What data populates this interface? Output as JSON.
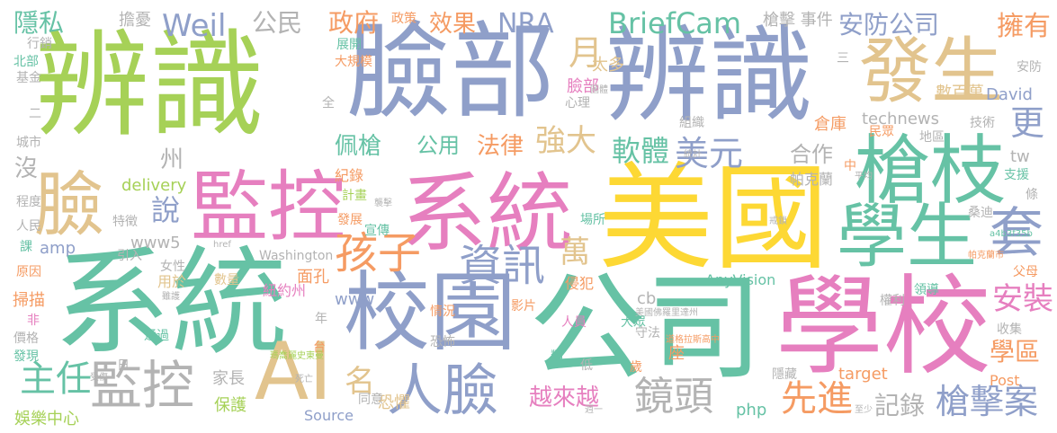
{
  "palette": {
    "green": "#a6d157",
    "blue": "#8f9fc9",
    "tan": "#e2c48e",
    "pink": "#e67fbf",
    "teal": "#66c2a5",
    "orange": "#f59b63",
    "gray": "#b3b3b3",
    "yellow": "#fdd834"
  },
  "words": [
    {
      "text": "辨識",
      "color": "green"
    },
    {
      "text": "臉部",
      "color": "blue"
    },
    {
      "text": "辨識",
      "color": "blue"
    },
    {
      "text": "發生",
      "color": "tan"
    },
    {
      "text": "系統",
      "color": "teal"
    },
    {
      "text": "公司",
      "color": "teal"
    },
    {
      "text": "美國",
      "color": "yellow"
    },
    {
      "text": "學校",
      "color": "pink"
    },
    {
      "text": "系統",
      "color": "pink"
    },
    {
      "text": "監控",
      "color": "pink"
    },
    {
      "text": "校園",
      "color": "blue"
    },
    {
      "text": "槍枝",
      "color": "teal"
    },
    {
      "text": "學生",
      "color": "teal"
    },
    {
      "text": "臉",
      "color": "tan"
    },
    {
      "text": "AI",
      "color": "tan"
    },
    {
      "text": "人臉",
      "color": "blue"
    },
    {
      "text": "監控",
      "color": "gray"
    },
    {
      "text": "孩子",
      "color": "orange"
    },
    {
      "text": "資訊",
      "color": "blue"
    },
    {
      "text": "套",
      "color": "blue"
    },
    {
      "text": "美元",
      "color": "blue"
    },
    {
      "text": "軟體",
      "color": "teal"
    },
    {
      "text": "強大",
      "color": "tan"
    },
    {
      "text": "鏡頭",
      "color": "gray"
    },
    {
      "text": "隱私",
      "color": "teal"
    },
    {
      "text": "Weil",
      "color": "blue"
    },
    {
      "text": "公民",
      "color": "gray"
    },
    {
      "text": "政府",
      "color": "orange"
    },
    {
      "text": "效果",
      "color": "orange"
    },
    {
      "text": "NRA",
      "color": "blue"
    },
    {
      "text": "BriefCam",
      "color": "teal"
    },
    {
      "text": "安防公司",
      "color": "blue"
    },
    {
      "text": "擁有",
      "color": "orange"
    },
    {
      "text": "更",
      "color": "blue"
    },
    {
      "text": "佩槍",
      "color": "teal"
    },
    {
      "text": "公用",
      "color": "teal"
    },
    {
      "text": "法律",
      "color": "orange"
    },
    {
      "text": "合作",
      "color": "gray"
    },
    {
      "text": "主任",
      "color": "teal"
    },
    {
      "text": "名",
      "color": "tan"
    },
    {
      "text": "萬",
      "color": "tan"
    },
    {
      "text": "先進",
      "color": "orange"
    },
    {
      "text": "記錄",
      "color": "gray"
    },
    {
      "text": "槍擊案",
      "color": "blue"
    },
    {
      "text": "越來越",
      "color": "pink"
    },
    {
      "text": "安裝",
      "color": "pink"
    },
    {
      "text": "學區",
      "color": "orange"
    },
    {
      "text": "月",
      "color": "tan"
    },
    {
      "text": "擔憂",
      "color": "gray"
    },
    {
      "text": "說",
      "color": "blue"
    },
    {
      "text": "沒",
      "color": "gray"
    },
    {
      "text": "州",
      "color": "gray"
    },
    {
      "text": "槍擊 事件",
      "color": "gray"
    },
    {
      "text": "delivery",
      "color": "green"
    },
    {
      "text": "amp",
      "color": "blue"
    },
    {
      "text": "www5",
      "color": "gray"
    },
    {
      "text": "Washington",
      "color": "gray"
    },
    {
      "text": "www",
      "color": "blue"
    },
    {
      "text": "AnyVision",
      "color": "teal"
    },
    {
      "text": "technews",
      "color": "gray"
    },
    {
      "text": "tw",
      "color": "gray"
    },
    {
      "text": "David",
      "color": "blue"
    },
    {
      "text": "Source",
      "color": "blue"
    },
    {
      "text": "target",
      "color": "orange"
    },
    {
      "text": "Post",
      "color": "orange"
    },
    {
      "text": "php",
      "color": "teal"
    },
    {
      "text": "cb",
      "color": "gray"
    },
    {
      "text": "紐約州",
      "color": "pink"
    },
    {
      "text": "家長",
      "color": "gray"
    },
    {
      "text": "保護",
      "color": "green"
    },
    {
      "text": "娛樂中心",
      "color": "green"
    },
    {
      "text": "掃描",
      "color": "orange"
    },
    {
      "text": "數百萬",
      "color": "tan"
    },
    {
      "text": "倉庫",
      "color": "orange"
    },
    {
      "text": "臉部",
      "color": "pink"
    },
    {
      "text": "太多",
      "color": "tan"
    },
    {
      "text": "帕克蘭",
      "color": "gray"
    },
    {
      "text": "技術",
      "color": "gray"
    },
    {
      "text": "地區",
      "color": "gray"
    },
    {
      "text": "民眾",
      "color": "orange"
    },
    {
      "text": "支援",
      "color": "teal"
    },
    {
      "text": "紀錄",
      "color": "orange"
    },
    {
      "text": "計畫",
      "color": "green"
    },
    {
      "text": "發展",
      "color": "orange"
    },
    {
      "text": "宣傳",
      "color": "teal"
    },
    {
      "text": "場所",
      "color": "teal"
    },
    {
      "text": "桑迪",
      "color": "gray"
    },
    {
      "text": "組織",
      "color": "gray"
    },
    {
      "text": "侵犯",
      "color": "orange"
    },
    {
      "text": "人員",
      "color": "pink"
    },
    {
      "text": "大眾",
      "color": "teal"
    },
    {
      "text": "影片",
      "color": "orange"
    },
    {
      "text": "情況",
      "color": "orange"
    },
    {
      "text": "恐怖",
      "color": "gray"
    },
    {
      "text": "恐懼",
      "color": "tan"
    },
    {
      "text": "同意",
      "color": "gray"
    },
    {
      "text": "數量",
      "color": "tan"
    },
    {
      "text": "女性",
      "color": "gray"
    },
    {
      "text": "用於",
      "color": "tan"
    },
    {
      "text": "面孔",
      "color": "orange"
    },
    {
      "text": "特徵",
      "color": "gray"
    },
    {
      "text": "引入",
      "color": "gray"
    },
    {
      "text": "通過",
      "color": "teal"
    },
    {
      "text": "價格",
      "color": "gray"
    },
    {
      "text": "發現",
      "color": "teal"
    },
    {
      "text": "收集",
      "color": "gray"
    },
    {
      "text": "領導",
      "color": "teal"
    },
    {
      "text": "權利",
      "color": "gray"
    },
    {
      "text": "守法",
      "color": "gray"
    },
    {
      "text": "隱藏",
      "color": "gray"
    },
    {
      "text": "座",
      "color": "orange"
    },
    {
      "text": "歲",
      "color": "orange"
    },
    {
      "text": "類",
      "color": "teal"
    },
    {
      "text": "低",
      "color": "gray"
    },
    {
      "text": "年",
      "color": "gray"
    },
    {
      "text": "行銷",
      "color": "gray"
    },
    {
      "text": "北部",
      "color": "teal"
    },
    {
      "text": "基金",
      "color": "gray"
    },
    {
      "text": "城市",
      "color": "gray"
    },
    {
      "text": "程度",
      "color": "gray"
    },
    {
      "text": "人民",
      "color": "gray"
    },
    {
      "text": "課",
      "color": "teal"
    },
    {
      "text": "原因",
      "color": "orange"
    },
    {
      "text": "非",
      "color": "pink"
    },
    {
      "text": "父母",
      "color": "orange"
    },
    {
      "text": "條",
      "color": "gray"
    },
    {
      "text": "安防",
      "color": "gray"
    },
    {
      "text": "心理",
      "color": "gray"
    },
    {
      "text": "展開",
      "color": "teal"
    },
    {
      "text": "大規模",
      "color": "orange"
    },
    {
      "text": "政策",
      "color": "orange"
    },
    {
      "text": "全",
      "color": "gray"
    },
    {
      "text": "二",
      "color": "gray"
    },
    {
      "text": "三",
      "color": "gray"
    },
    {
      "text": "中",
      "color": "orange"
    },
    {
      "text": "日",
      "color": "gray"
    },
    {
      "text": "台",
      "color": "orange"
    },
    {
      "text": "a4b3f35b",
      "color": "teal"
    },
    {
      "text": "美國佛羅里達州",
      "color": "gray"
    },
    {
      "text": "瑪喬麗史東曼",
      "color": "green"
    },
    {
      "text": "帕克蘭市",
      "color": "orange"
    },
    {
      "text": "圖體",
      "color": "gray"
    },
    {
      "text": "統計",
      "color": "gray"
    },
    {
      "text": "平均",
      "color": "gray"
    },
    {
      "text": "死亡",
      "color": "gray"
    },
    {
      "text": "雖護",
      "color": "gray"
    },
    {
      "text": "襲擊",
      "color": "gray"
    },
    {
      "text": "href",
      "color": "gray"
    },
    {
      "text": "週一",
      "color": "gray"
    },
    {
      "text": "至少",
      "color": "gray"
    },
    {
      "text": "受傷",
      "color": "gray"
    },
    {
      "text": "道格拉斯高中",
      "color": "orange"
    },
    {
      "text": "戒鎖",
      "color": "gray"
    }
  ]
}
